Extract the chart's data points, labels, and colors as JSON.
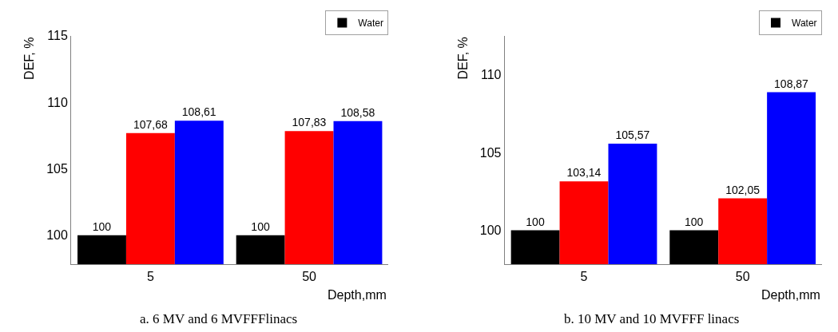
{
  "chart_data": [
    {
      "type": "bar",
      "categories": [
        "5",
        "50"
      ],
      "xlabel": "Depth,mm",
      "ylabel": "DEF, %",
      "ylim": [
        97.8,
        115
      ],
      "yticks": [
        100,
        105,
        110,
        115
      ],
      "legend": "top right",
      "series": [
        {
          "name": "Water",
          "color": "#000000",
          "values": [
            100,
            100
          ],
          "value_labels": [
            "100",
            "100"
          ]
        },
        {
          "color": "#ff0000",
          "values": [
            107.68,
            107.83
          ],
          "value_labels": [
            "107,68",
            "107,83"
          ]
        },
        {
          "color": "#0000ff",
          "values": [
            108.61,
            108.58
          ],
          "value_labels": [
            "108,61",
            "108,58"
          ]
        }
      ],
      "annotations": [
        "a. 6 MV and 6 MVFFFlinacs"
      ]
    },
    {
      "type": "bar",
      "categories": [
        "5",
        "50"
      ],
      "xlabel": "Depth,mm",
      "ylabel": "DEF, %",
      "ylim": [
        97.8,
        112.5
      ],
      "yticks": [
        100,
        105,
        110
      ],
      "legend": "top right",
      "series": [
        {
          "name": "Water",
          "color": "#000000",
          "values": [
            100,
            100
          ],
          "value_labels": [
            "100",
            "100"
          ]
        },
        {
          "color": "#ff0000",
          "values": [
            103.14,
            102.05
          ],
          "value_labels": [
            "103,14",
            "102,05"
          ]
        },
        {
          "color": "#0000ff",
          "values": [
            105.57,
            108.87
          ],
          "value_labels": [
            "105,57",
            "108,87"
          ]
        }
      ],
      "annotations": [
        "b. 10 MV and 10 MVFFF linacs"
      ]
    }
  ]
}
